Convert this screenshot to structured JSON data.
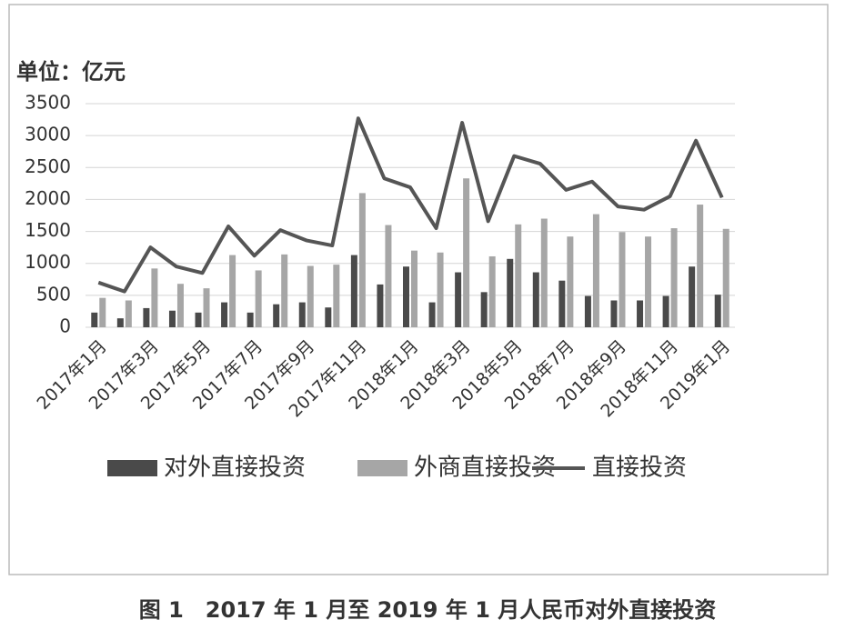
{
  "chart_data": {
    "type": "bar_line",
    "y_label": "单位：亿元",
    "caption": "图 1　2017 年 1 月至 2019 年 1 月人民币对外直接投资",
    "categories": [
      "2017年1月",
      null,
      "2017年3月",
      null,
      "2017年5月",
      null,
      "2017年7月",
      null,
      "2017年9月",
      null,
      "2017年11月",
      null,
      "2018年1月",
      null,
      "2018年3月",
      null,
      "2018年5月",
      null,
      "2018年7月",
      null,
      "2018年9月",
      null,
      "2018年11月",
      null,
      "2019年1月"
    ],
    "series": [
      {
        "name": "对外直接投资",
        "type": "bar",
        "color": "#4a4a4a",
        "values": [
          230,
          140,
          300,
          260,
          230,
          390,
          230,
          360,
          390,
          310,
          1130,
          670,
          950,
          390,
          860,
          550,
          1070,
          860,
          730,
          490,
          420,
          420,
          490,
          950,
          510
        ]
      },
      {
        "name": "外商直接投资",
        "type": "bar",
        "color": "#a6a6a6",
        "values": [
          460,
          420,
          920,
          680,
          610,
          1130,
          890,
          1140,
          960,
          980,
          2100,
          1600,
          1200,
          1170,
          2330,
          1110,
          1610,
          1700,
          1420,
          1770,
          1490,
          1420,
          1550,
          1920,
          1540
        ]
      },
      {
        "name": "直接投资",
        "type": "line",
        "color": "#555555",
        "values": [
          700,
          560,
          1250,
          950,
          850,
          1580,
          1120,
          1520,
          1360,
          1280,
          3270,
          2330,
          2190,
          1550,
          3200,
          1660,
          2680,
          2560,
          2150,
          2280,
          1890,
          1840,
          2050,
          2920,
          2030
        ]
      }
    ],
    "ylim": [
      0,
      3500
    ],
    "yticks": [
      0,
      500,
      1000,
      1500,
      2000,
      2500,
      3000,
      3500
    ],
    "grid": true
  }
}
